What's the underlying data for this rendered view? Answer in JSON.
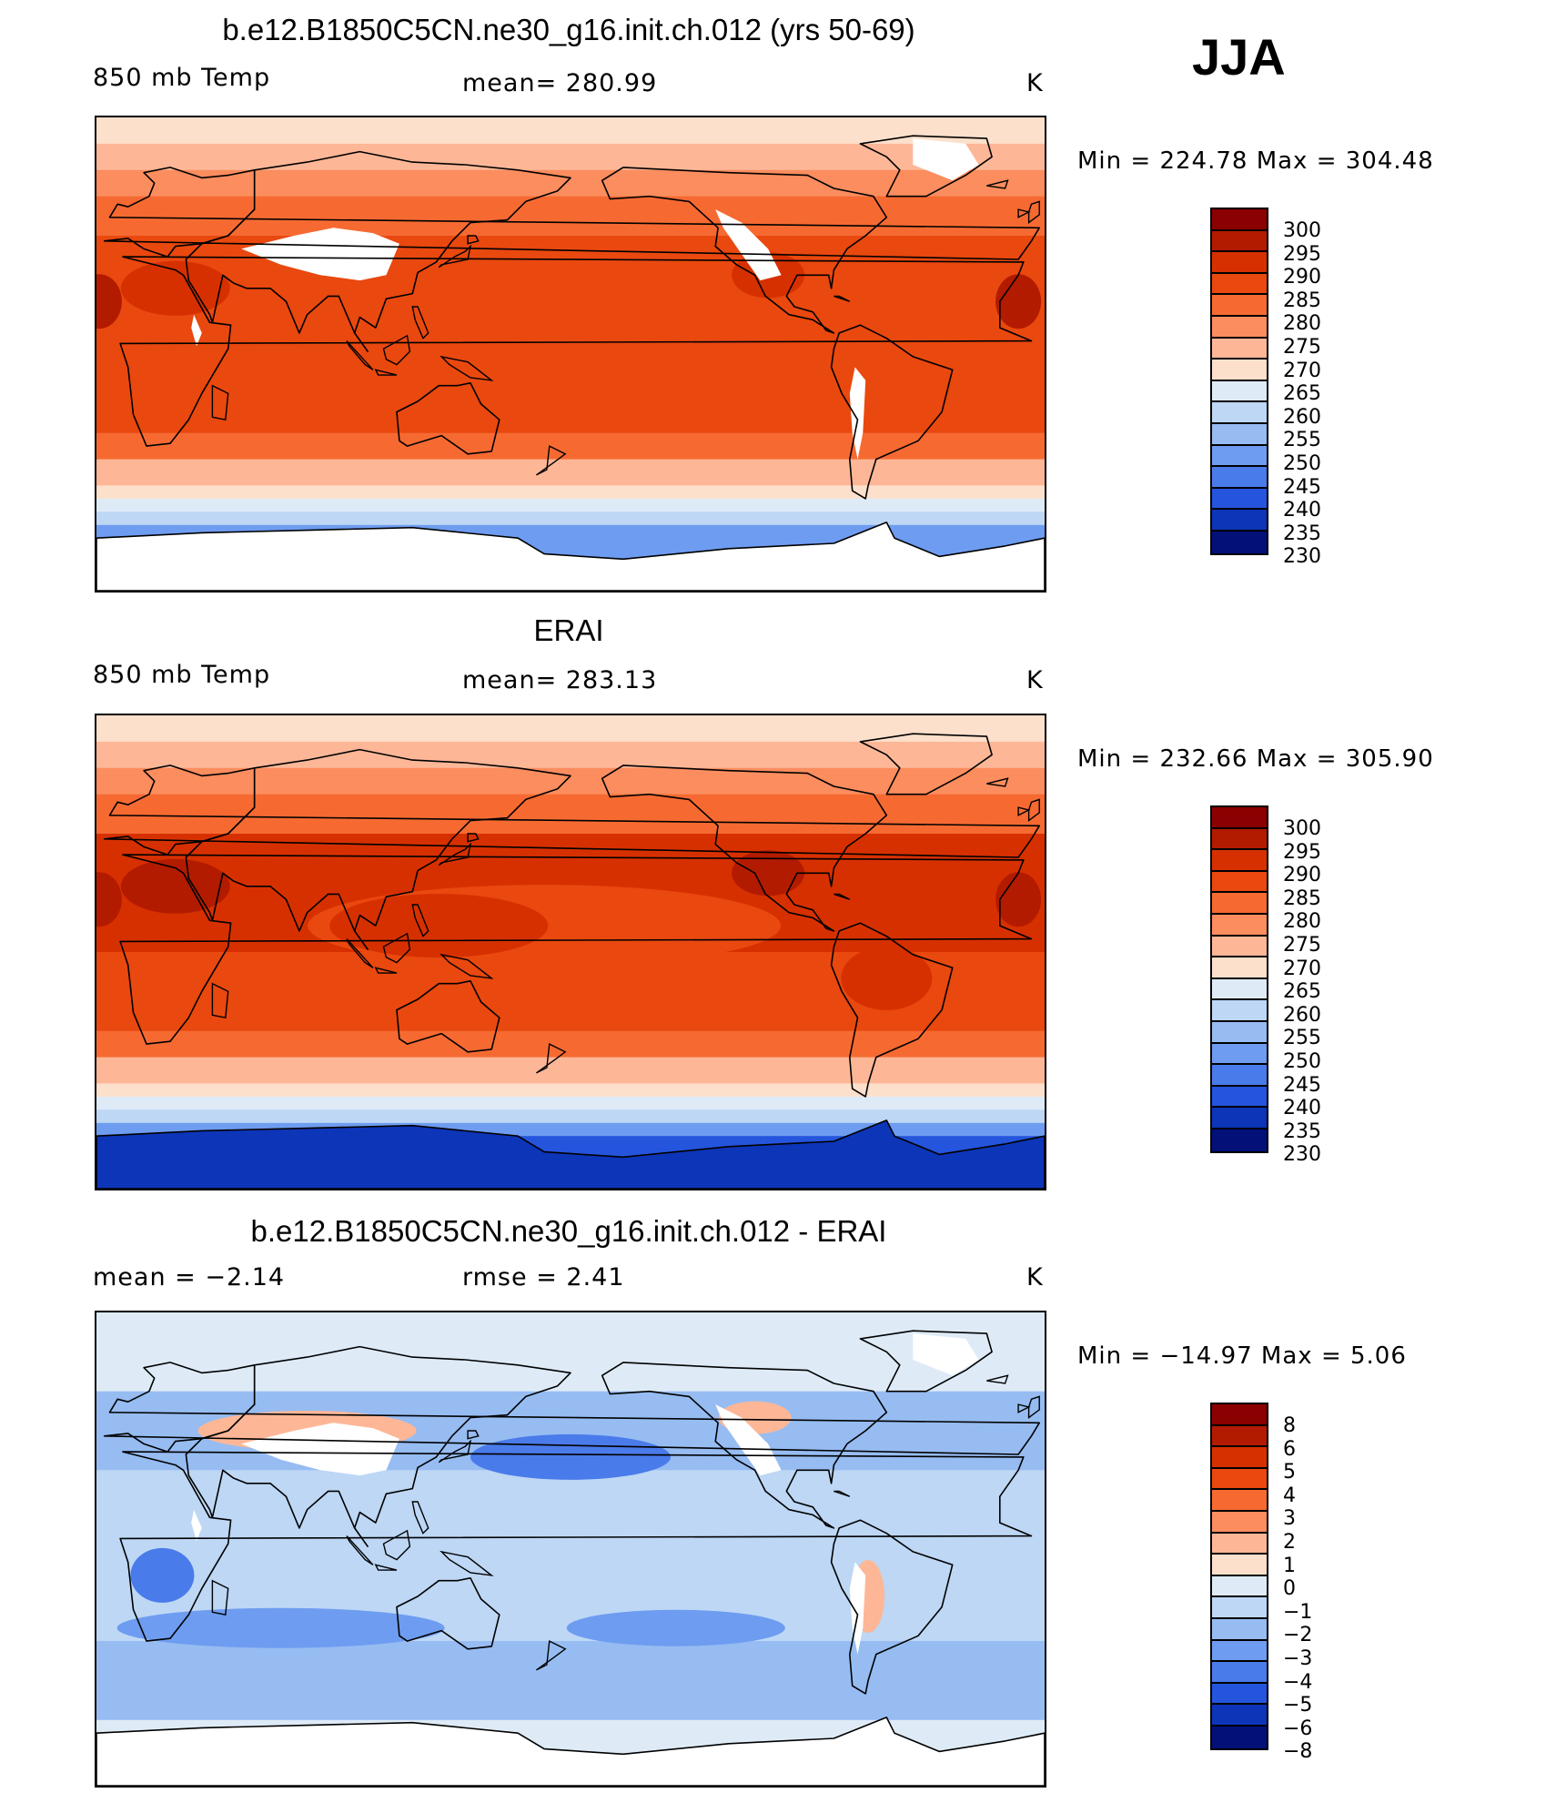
{
  "season": "JJA",
  "panels": [
    {
      "title": "b.e12.B1850C5CN.ne30_g16.init.ch.012 (yrs 50-69)",
      "left_label": "850 mb Temp",
      "center_label": "mean=  280.99",
      "right_label": "K",
      "minmax": "Min  =  224.78  Max  =  304.48",
      "scale": "temp",
      "field": "model"
    },
    {
      "title": "ERAI",
      "left_label": "850 mb Temp",
      "center_label": "mean=  283.13",
      "right_label": "K",
      "minmax": "Min  =  232.66  Max  =  305.90",
      "scale": "temp",
      "field": "obs"
    },
    {
      "title": "b.e12.B1850C5CN.ne30_g16.init.ch.012 - ERAI",
      "left_label": "mean  =    −2.14",
      "center_label": "rmse  =     2.41",
      "right_label": "K",
      "minmax": "Min  =  −14.97  Max  =     5.06",
      "scale": "diff",
      "field": "diff"
    }
  ],
  "colorbars": {
    "temp": {
      "labels": [
        "300",
        "295",
        "290",
        "285",
        "280",
        "275",
        "270",
        "265",
        "260",
        "255",
        "250",
        "245",
        "240",
        "235",
        "230"
      ],
      "colors": [
        "#8b0000",
        "#b31b00",
        "#d73000",
        "#e9480f",
        "#f66a32",
        "#fb8d5e",
        "#fdb797",
        "#fde0cc",
        "#deebf7",
        "#bdd7f5",
        "#96bcf2",
        "#6e9cf0",
        "#4a7bea",
        "#2555dd",
        "#0d35b8",
        "#021078"
      ]
    },
    "diff": {
      "labels": [
        "8",
        "6",
        "5",
        "4",
        "3",
        "2",
        "1",
        "0",
        "−1",
        "−2",
        "−3",
        "−4",
        "−5",
        "−6",
        "−8"
      ],
      "colors": [
        "#8b0000",
        "#b31b00",
        "#d73000",
        "#e9480f",
        "#f66a32",
        "#fb8d5e",
        "#fdb797",
        "#fde0cc",
        "#deebf7",
        "#bdd7f5",
        "#96bcf2",
        "#6e9cf0",
        "#4a7bea",
        "#2555dd",
        "#0d35b8",
        "#021078"
      ]
    }
  }
}
